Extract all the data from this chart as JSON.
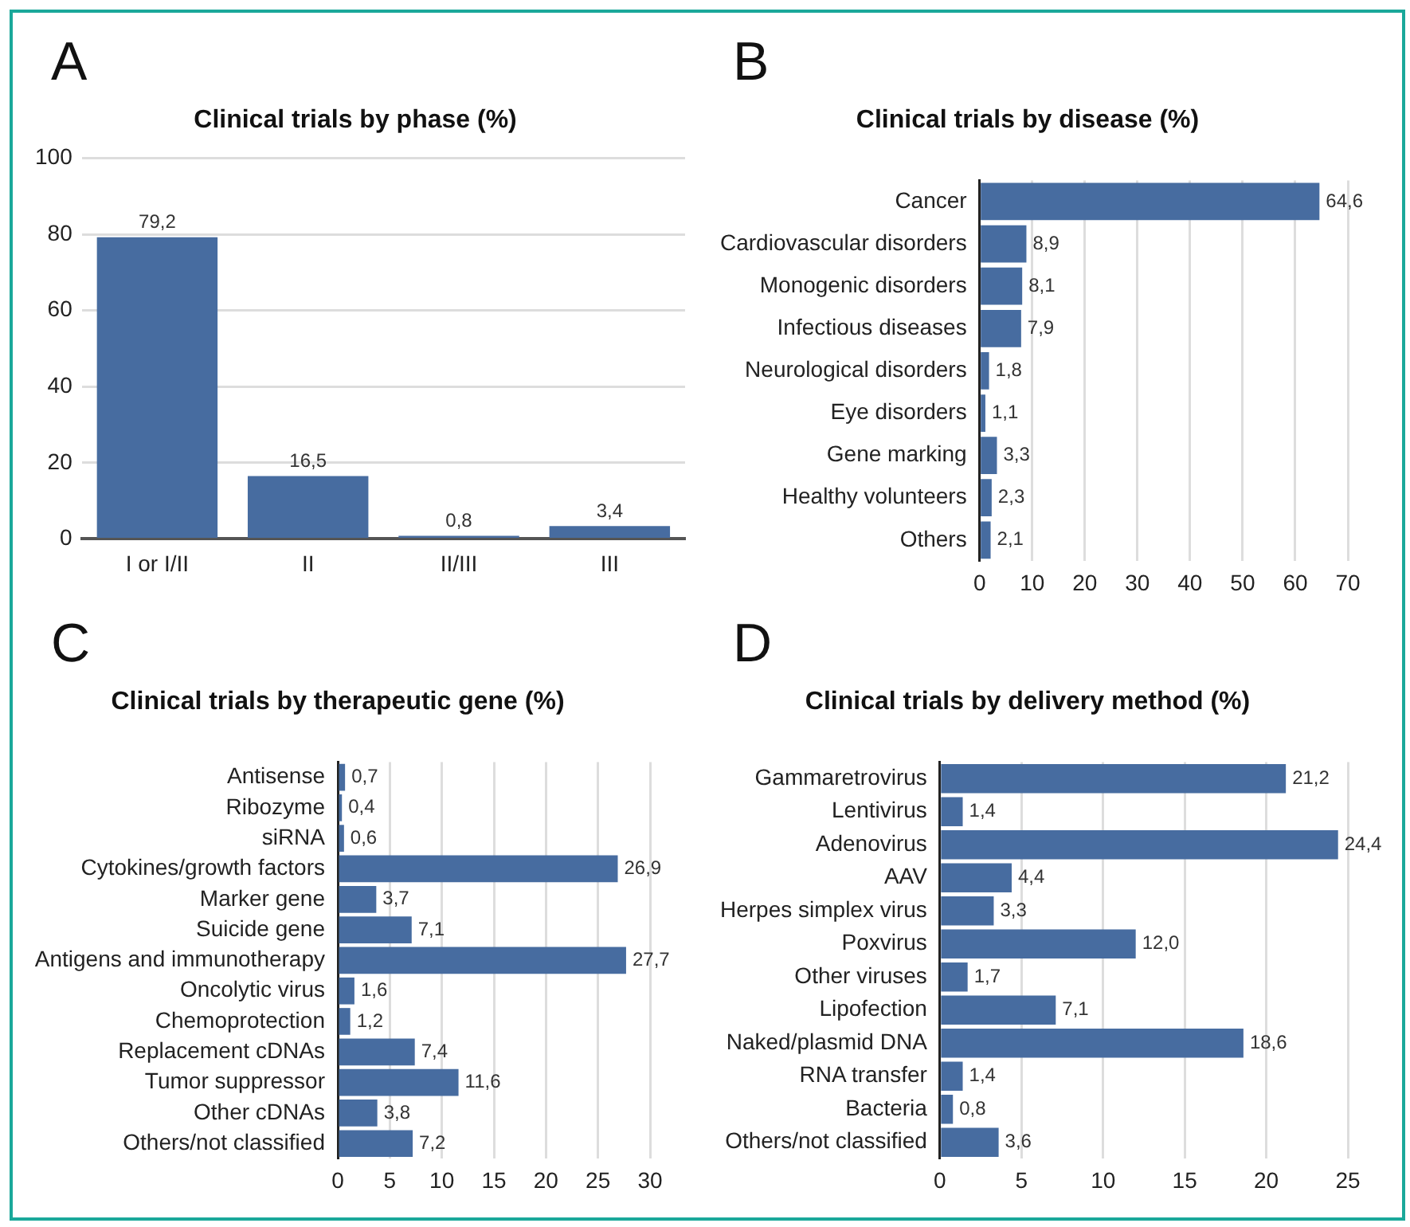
{
  "chart_data": [
    {
      "type": "bar",
      "title": "Clinical trials by phase (%)",
      "annotations": [
        "A"
      ],
      "categories": [
        "I or I/II",
        "II",
        "II/III",
        "III"
      ],
      "values": [
        79.2,
        16.5,
        0.8,
        3.4
      ],
      "value_labels": [
        "79,2",
        "16,5",
        "0,8",
        "3,4"
      ],
      "color": "#476ca0",
      "ylim": [
        0,
        100
      ],
      "yticks": [
        0,
        20,
        40,
        60,
        80,
        100
      ],
      "grid": "y"
    },
    {
      "type": "bar",
      "orientation": "horizontal",
      "title": "Clinical trials by disease (%)",
      "annotations": [
        "B"
      ],
      "categories": [
        "Cancer",
        "Cardiovascular disorders",
        "Monogenic disorders",
        "Infectious diseases",
        "Neurological disorders",
        "Eye disorders",
        "Gene marking",
        "Healthy volunteers",
        "Others"
      ],
      "values": [
        64.6,
        8.9,
        8.1,
        7.9,
        1.8,
        1.1,
        3.3,
        2.3,
        2.1
      ],
      "value_labels": [
        "64,6",
        "8,9",
        "8,1",
        "7,9",
        "1,8",
        "1,1",
        "3,3",
        "2,3",
        "2,1"
      ],
      "color": "#476ca0",
      "xlim": [
        0,
        70
      ],
      "xticks": [
        0,
        10,
        20,
        30,
        40,
        50,
        60,
        70
      ],
      "grid": "x"
    },
    {
      "type": "bar",
      "orientation": "horizontal",
      "title": "Clinical trials by therapeutic gene (%)",
      "annotations": [
        "C"
      ],
      "categories": [
        "Antisense",
        "Ribozyme",
        "siRNA",
        "Cytokines/growth factors",
        "Marker gene",
        "Suicide gene",
        "Antigens and immunotherapy",
        "Oncolytic virus",
        "Chemoprotection",
        "Replacement cDNAs",
        "Tumor suppressor",
        "Other cDNAs",
        "Others/not classified"
      ],
      "values": [
        0.7,
        0.4,
        0.6,
        26.9,
        3.7,
        7.1,
        27.7,
        1.6,
        1.2,
        7.4,
        11.6,
        3.8,
        7.2
      ],
      "value_labels": [
        "0,7",
        "0,4",
        "0,6",
        "26,9",
        "3,7",
        "7,1",
        "27,7",
        "1,6",
        "1,2",
        "7,4",
        "11,6",
        "3,8",
        "7,2"
      ],
      "color": "#476ca0",
      "xlim": [
        0,
        30
      ],
      "xticks": [
        0,
        5,
        10,
        15,
        20,
        25,
        30
      ],
      "grid": "x"
    },
    {
      "type": "bar",
      "orientation": "horizontal",
      "title": "Clinical trials by delivery method (%)",
      "annotations": [
        "D"
      ],
      "categories": [
        "Gammaretrovirus",
        "Lentivirus",
        "Adenovirus",
        "AAV",
        "Herpes simplex virus",
        "Poxvirus",
        "Other viruses",
        "Lipofection",
        "Naked/plasmid DNA",
        "RNA transfer",
        "Bacteria",
        "Others/not classified"
      ],
      "values": [
        21.2,
        1.4,
        24.4,
        4.4,
        3.3,
        12.0,
        1.7,
        7.1,
        18.6,
        1.4,
        0.8,
        3.6
      ],
      "value_labels": [
        "21,2",
        "1,4",
        "24,4",
        "4,4",
        "3,3",
        "12,0",
        "1,7",
        "7,1",
        "18,6",
        "1,4",
        "0,8",
        "3,6"
      ],
      "color": "#476ca0",
      "xlim": [
        0,
        25
      ],
      "xticks": [
        0,
        5,
        10,
        15,
        20,
        25
      ],
      "grid": "x"
    }
  ]
}
